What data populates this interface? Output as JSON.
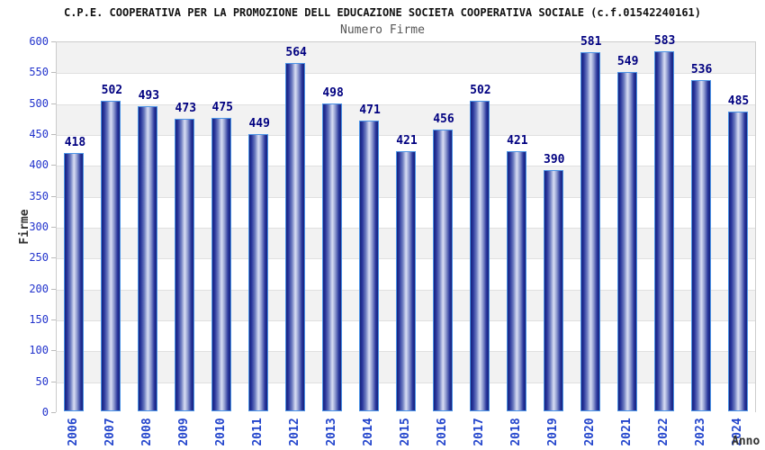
{
  "header": {
    "title": "C.P.E. COOPERATIVA PER LA PROMOZIONE DELL EDUCAZIONE SOCIETA COOPERATIVA SOCIALE (c.f.01542240161)",
    "subtitle": "Numero Firme"
  },
  "chart_data": {
    "type": "bar",
    "title": "Numero Firme",
    "categories": [
      "2006",
      "2007",
      "2008",
      "2009",
      "2010",
      "2011",
      "2012",
      "2013",
      "2014",
      "2015",
      "2016",
      "2017",
      "2018",
      "2019",
      "2020",
      "2021",
      "2022",
      "2023",
      "2024"
    ],
    "values": [
      418,
      502,
      493,
      473,
      475,
      449,
      564,
      498,
      471,
      421,
      456,
      502,
      421,
      390,
      581,
      549,
      583,
      536,
      485
    ],
    "xlabel": "Anno",
    "ylabel": "Firme",
    "ylim": [
      0,
      600
    ],
    "ytick_step": 50,
    "grid": true,
    "legend": "none",
    "colors": {
      "bar_edge": "#4b93e6",
      "bar_dark": "#17237c",
      "bar_light": "#d6dcf2",
      "value_label": "#000080",
      "tick_label": "#2233cc",
      "x_tick_label": "#2244cc",
      "axis_title": "#333333",
      "band": "#f2f2f2",
      "gridline": "#e0e0e0",
      "plot_border": "#cccccc",
      "title": "#111111",
      "subtitle": "#555555"
    }
  }
}
